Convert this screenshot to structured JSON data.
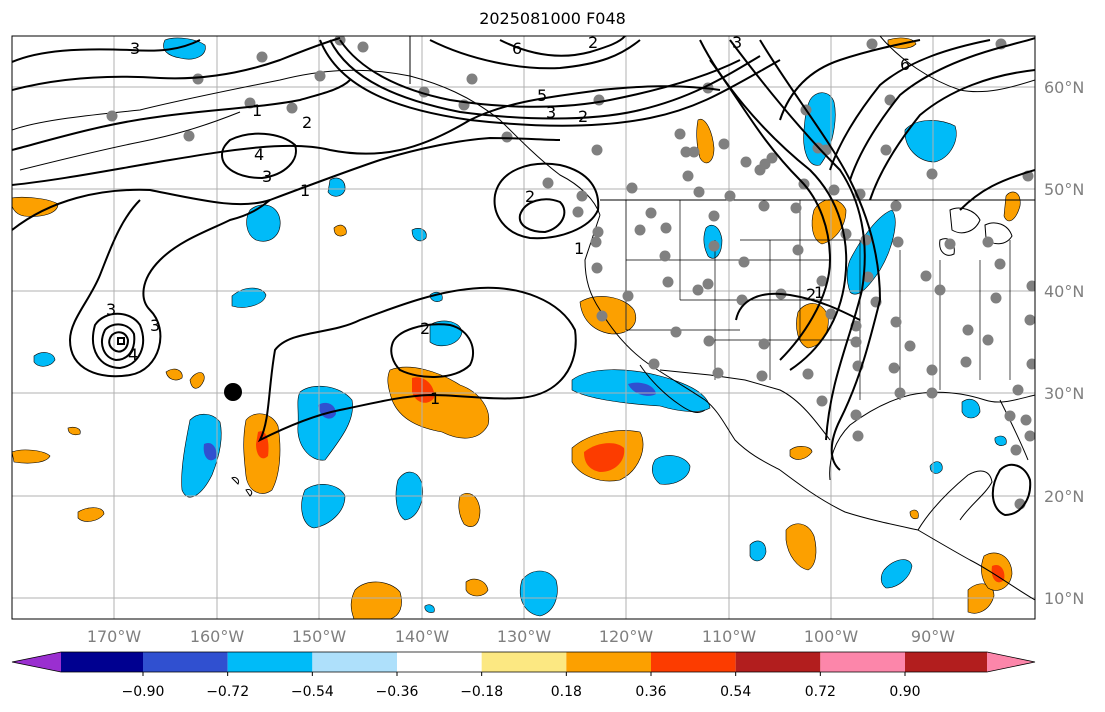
{
  "title": "2025081000 F048",
  "lat_labels": [
    "60°N",
    "50°N",
    "40°N",
    "30°N",
    "20°N",
    "10°N"
  ],
  "lon_labels": [
    "170°W",
    "160°W",
    "150°W",
    "140°W",
    "130°W",
    "120°W",
    "110°W",
    "100°W",
    "90°W"
  ],
  "colorbar": {
    "tick_labels": [
      "−0.90",
      "−0.72",
      "−0.54",
      "−0.36",
      "−0.18",
      "0.18",
      "0.36",
      "0.54",
      "0.72",
      "0.90"
    ],
    "colors": [
      "#9a2fd0",
      "#000090",
      "#3050d0",
      "#00bbf8",
      "#aee0fb",
      "#ffffff",
      "#fce882",
      "#fca000",
      "#fc3c00",
      "#b21e1e",
      "#fc86aa"
    ]
  },
  "contour_labels": [
    "3",
    "1",
    "2",
    "3",
    "4",
    "1",
    "3",
    "4",
    "3",
    "2",
    "1",
    "6",
    "5",
    "3",
    "2",
    "2",
    "1",
    "2",
    "1",
    "3",
    "6",
    "2"
  ],
  "colors": {
    "grid": "#b0b0b0",
    "coast": "#000000",
    "station": "#808080",
    "marker": "#000000"
  }
}
